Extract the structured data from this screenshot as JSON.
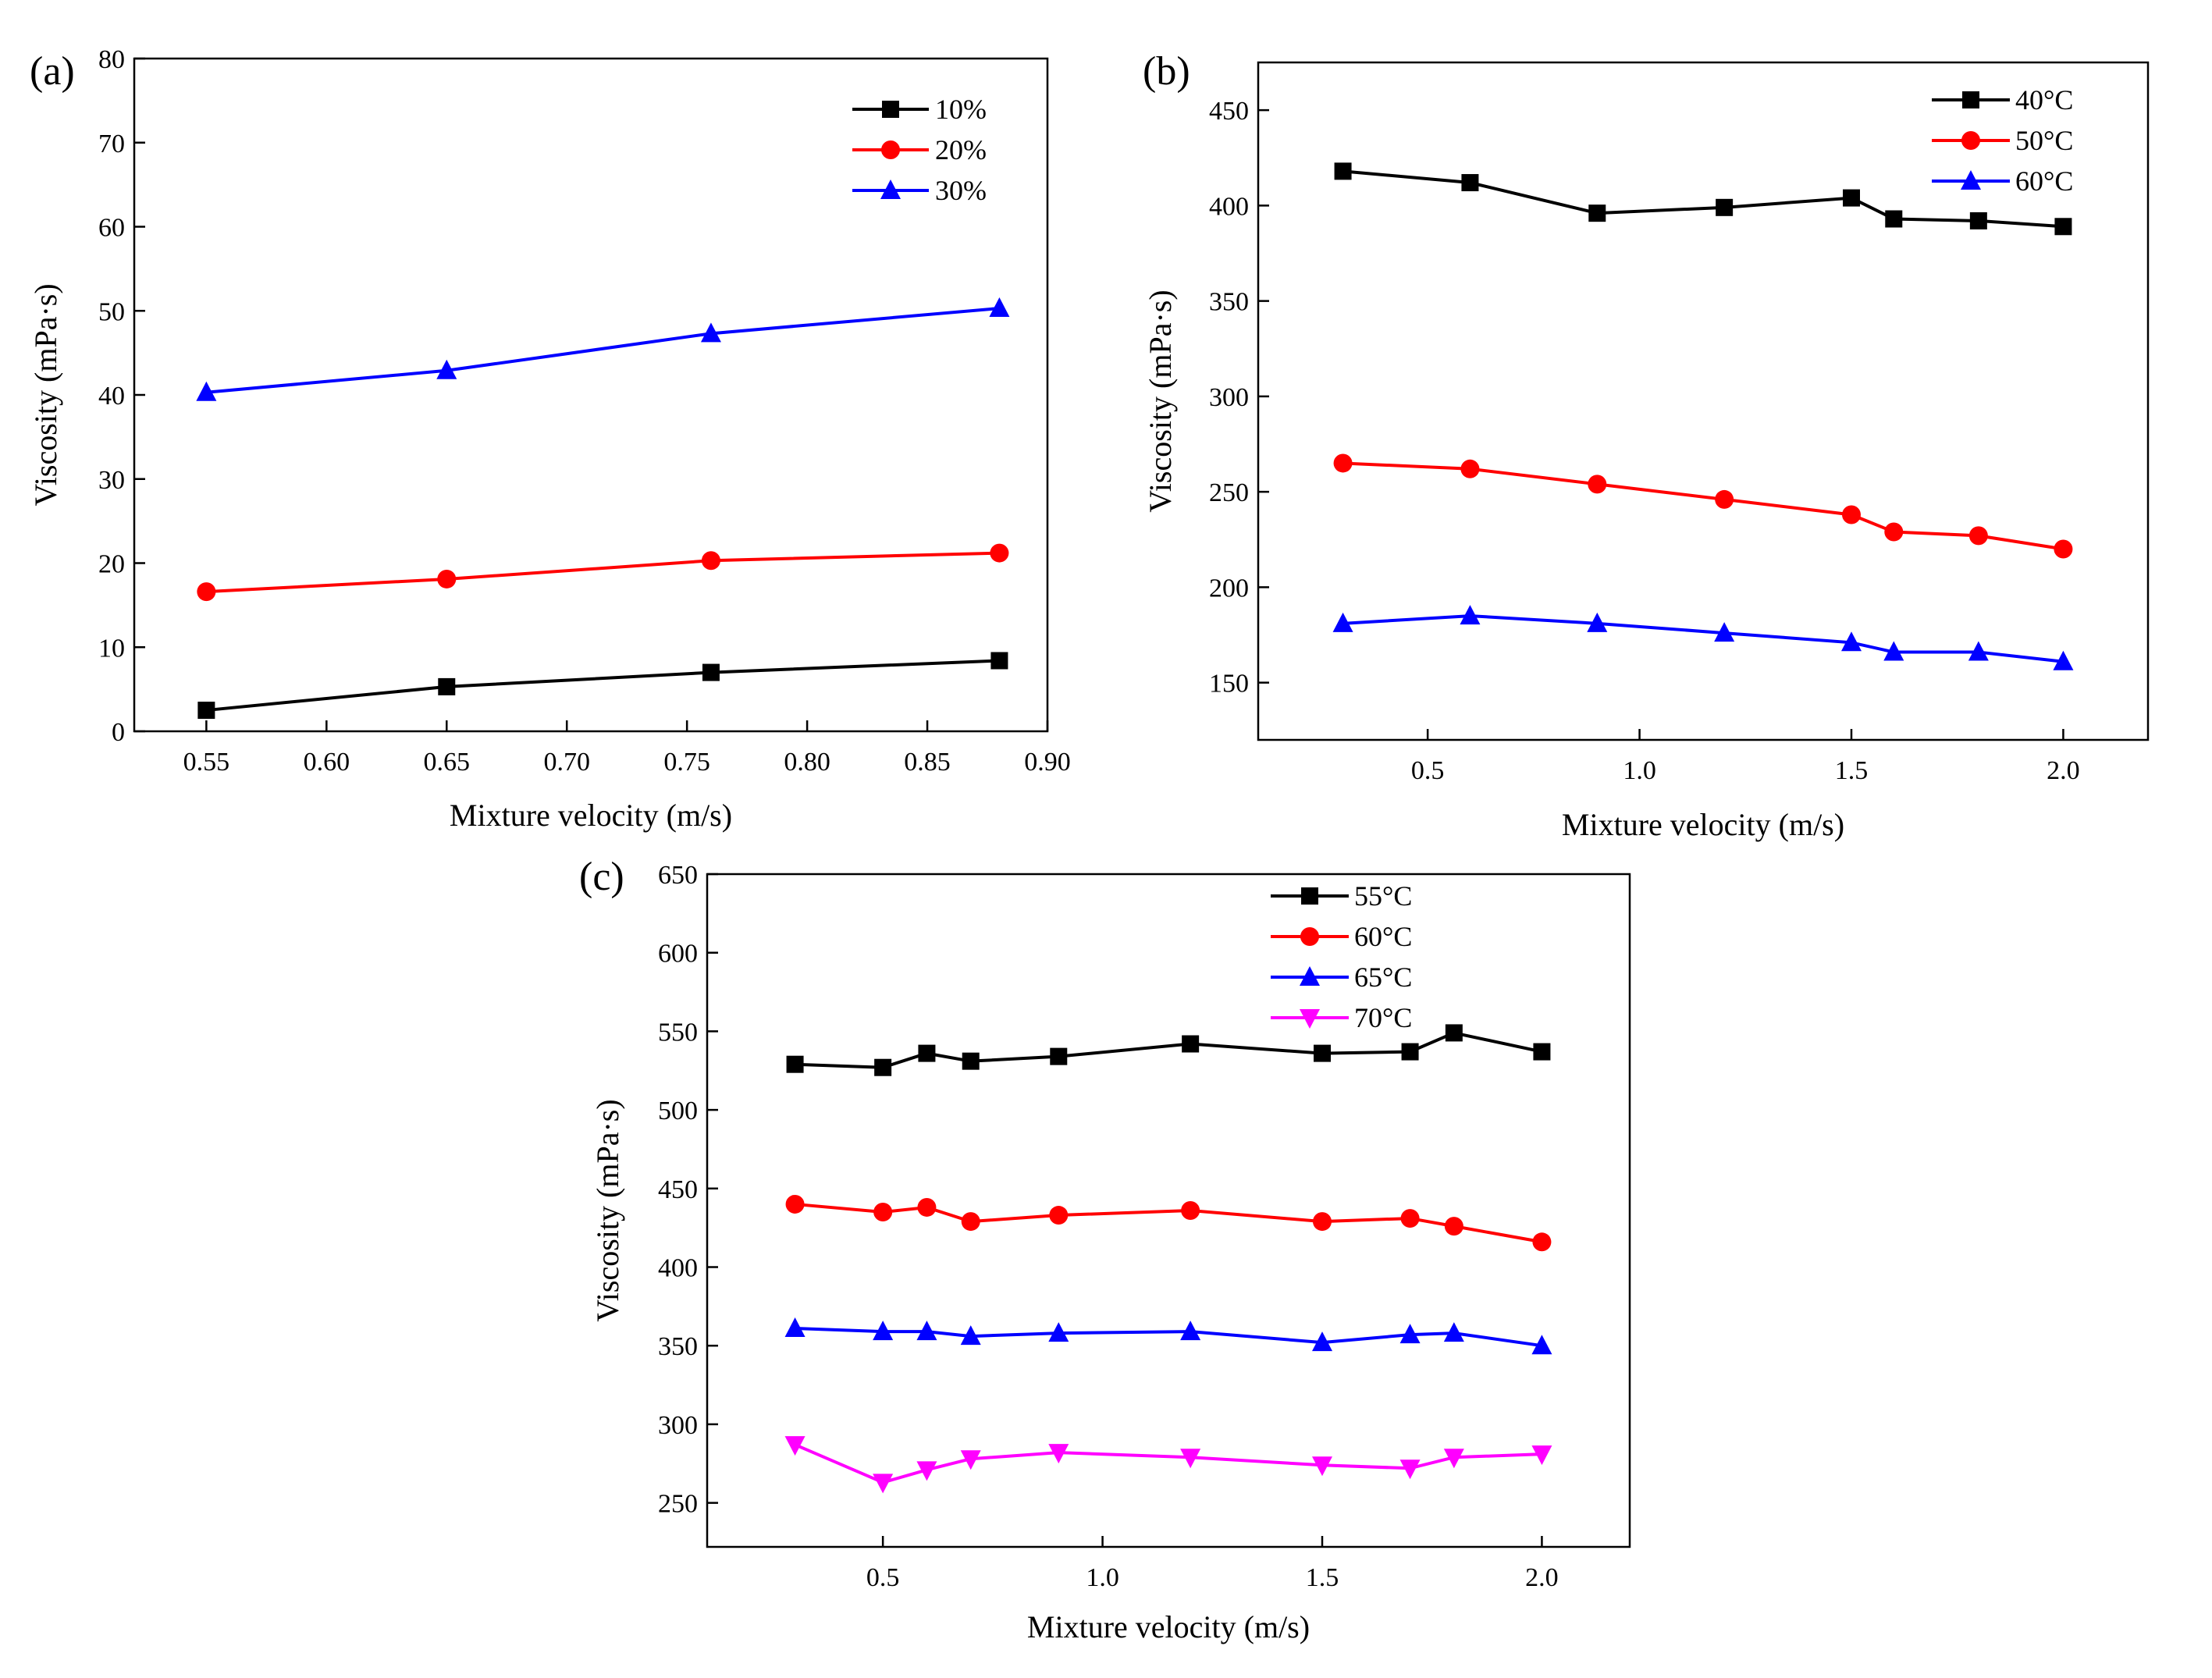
{
  "figure_labels": [
    "(a)",
    "(b)",
    "(c)"
  ],
  "chart_data": [
    {
      "type": "line",
      "panel_label": "(a)",
      "xlabel": "Mixture velocity (m/s)",
      "ylabel": "Viscosity (mPa·s)",
      "xlim": [
        0.52,
        0.9
      ],
      "ylim": [
        0,
        80
      ],
      "x_ticks": [
        0.55,
        0.6,
        0.65,
        0.7,
        0.75,
        0.8,
        0.85,
        0.9
      ],
      "x_tick_labels": [
        "0.55",
        "0.60",
        "0.65",
        "0.70",
        "0.75",
        "0.80",
        "0.85",
        "0.90"
      ],
      "y_ticks": [
        0,
        10,
        20,
        30,
        40,
        50,
        60,
        70,
        80
      ],
      "y_tick_labels": [
        "0",
        "10",
        "20",
        "30",
        "40",
        "50",
        "60",
        "70",
        "80"
      ],
      "legend_position": "top-right",
      "series": [
        {
          "name": "10%",
          "color": "#000000",
          "marker": "square",
          "x": [
            0.55,
            0.65,
            0.76,
            0.88
          ],
          "y": [
            2.5,
            5.3,
            7.0,
            8.4
          ]
        },
        {
          "name": "20%",
          "color": "#ff0000",
          "marker": "circle",
          "x": [
            0.55,
            0.65,
            0.76,
            0.88
          ],
          "y": [
            16.6,
            18.1,
            20.3,
            21.2
          ]
        },
        {
          "name": "30%",
          "color": "#0000ff",
          "marker": "triangle-up",
          "x": [
            0.55,
            0.65,
            0.76,
            0.88
          ],
          "y": [
            40.3,
            42.9,
            47.3,
            50.3
          ]
        }
      ]
    },
    {
      "type": "line",
      "panel_label": "(b)",
      "xlabel": "Mixture velocity (m/s)",
      "ylabel": "Viscosity (mPa·s)",
      "xlim": [
        0.1,
        2.2
      ],
      "ylim": [
        120,
        475
      ],
      "x_ticks": [
        0.5,
        1.0,
        1.5,
        2.0
      ],
      "x_tick_labels": [
        "0.5",
        "1.0",
        "1.5",
        "2.0"
      ],
      "y_ticks": [
        150,
        200,
        250,
        300,
        350,
        400,
        450
      ],
      "y_tick_labels": [
        "150",
        "200",
        "250",
        "300",
        "350",
        "400",
        "450"
      ],
      "legend_position": "top-right",
      "series": [
        {
          "name": "40°C",
          "color": "#000000",
          "marker": "square",
          "x": [
            0.3,
            0.6,
            0.9,
            1.2,
            1.5,
            1.6,
            1.8,
            2.0
          ],
          "y": [
            418,
            412,
            396,
            399,
            404,
            393,
            392,
            389
          ]
        },
        {
          "name": "50°C",
          "color": "#ff0000",
          "marker": "circle",
          "x": [
            0.3,
            0.6,
            0.9,
            1.2,
            1.5,
            1.6,
            1.8,
            2.0
          ],
          "y": [
            265,
            262,
            254,
            246,
            238,
            229,
            227,
            220
          ]
        },
        {
          "name": "60°C",
          "color": "#0000ff",
          "marker": "triangle-up",
          "x": [
            0.3,
            0.6,
            0.9,
            1.2,
            1.5,
            1.6,
            1.8,
            2.0
          ],
          "y": [
            181,
            185,
            181,
            176,
            171,
            166,
            166,
            161
          ]
        }
      ]
    },
    {
      "type": "line",
      "panel_label": "(c)",
      "xlabel": "Mixture velocity (m/s)",
      "ylabel": "Viscosity (mPa·s)",
      "xlim": [
        0.1,
        2.2
      ],
      "ylim": [
        222,
        650
      ],
      "x_ticks": [
        0.5,
        1.0,
        1.5,
        2.0
      ],
      "x_tick_labels": [
        "0.5",
        "1.0",
        "1.5",
        "2.0"
      ],
      "y_ticks": [
        250,
        300,
        350,
        400,
        450,
        500,
        550,
        600,
        650
      ],
      "y_tick_labels": [
        "250",
        "300",
        "350",
        "400",
        "450",
        "500",
        "550",
        "600",
        "650"
      ],
      "legend_position": "top-right",
      "series": [
        {
          "name": "55°C",
          "color": "#000000",
          "marker": "square",
          "x": [
            0.3,
            0.5,
            0.6,
            0.7,
            0.9,
            1.2,
            1.5,
            1.7,
            1.8,
            2.0
          ],
          "y": [
            529,
            527,
            536,
            531,
            534,
            542,
            536,
            537,
            549,
            537
          ]
        },
        {
          "name": "60°C",
          "color": "#ff0000",
          "marker": "circle",
          "x": [
            0.3,
            0.5,
            0.6,
            0.7,
            0.9,
            1.2,
            1.5,
            1.7,
            1.8,
            2.0
          ],
          "y": [
            440,
            435,
            438,
            429,
            433,
            436,
            429,
            431,
            426,
            416
          ]
        },
        {
          "name": "65°C",
          "color": "#0000ff",
          "marker": "triangle-up",
          "x": [
            0.3,
            0.5,
            0.6,
            0.7,
            0.9,
            1.2,
            1.5,
            1.7,
            1.8,
            2.0
          ],
          "y": [
            361,
            359,
            359,
            356,
            358,
            359,
            352,
            357,
            358,
            350
          ]
        },
        {
          "name": "70°C",
          "color": "#ff00ff",
          "marker": "triangle-down",
          "x": [
            0.3,
            0.5,
            0.6,
            0.7,
            0.9,
            1.2,
            1.5,
            1.7,
            1.8,
            2.0
          ],
          "y": [
            287,
            263,
            271,
            278,
            282,
            279,
            274,
            272,
            279,
            281
          ]
        }
      ]
    }
  ]
}
